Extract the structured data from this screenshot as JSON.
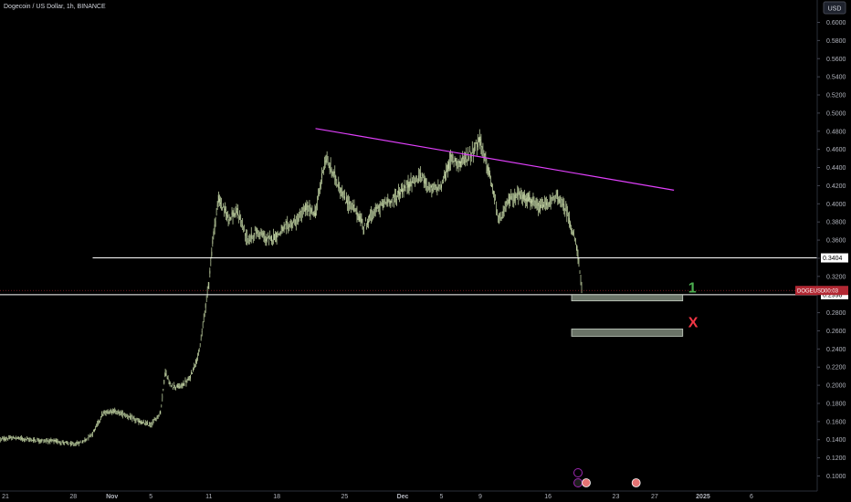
{
  "chart_data": {
    "type": "candlestick",
    "title": "Dogecoin / US Dollar, 1h, BINANCE",
    "currency_label": "USD",
    "y_axis": {
      "ticks": [
        "0.6000",
        "0.5800",
        "0.5600",
        "0.5400",
        "0.5200",
        "0.5000",
        "0.4800",
        "0.4600",
        "0.4400",
        "0.4200",
        "0.4000",
        "0.3800",
        "0.3600",
        "0.3400",
        "0.3200",
        "0.3000",
        "0.2800",
        "0.2600",
        "0.2400",
        "0.2200",
        "0.2000",
        "0.1800",
        "0.1600",
        "0.1400",
        "0.1200",
        "0.1000"
      ],
      "ylim": [
        0.093,
        0.617
      ]
    },
    "x_axis": {
      "ticks": [
        "21",
        "28",
        "Nov",
        "5",
        "11",
        "18",
        "25",
        "Dec",
        "5",
        "9",
        "16",
        "23",
        "27",
        "2025",
        "6"
      ],
      "xlim": [
        "2024-10-21",
        "2025-01-06"
      ]
    },
    "price_series": [
      [
        "2024-10-20T12:00",
        0.1405
      ],
      [
        "2024-10-22",
        0.142
      ],
      [
        "2024-10-24",
        0.1395
      ],
      [
        "2024-10-26",
        0.1385
      ],
      [
        "2024-10-27",
        0.137
      ],
      [
        "2024-10-28",
        0.1345
      ],
      [
        "2024-10-29",
        0.138
      ],
      [
        "2024-10-30",
        0.147
      ],
      [
        "2024-10-31",
        0.168
      ],
      [
        "2024-11-01",
        0.172
      ],
      [
        "2024-11-02",
        0.169
      ],
      [
        "2024-11-03",
        0.164
      ],
      [
        "2024-11-04",
        0.159
      ],
      [
        "2024-11-05",
        0.156
      ],
      [
        "2024-11-06",
        0.17
      ],
      [
        "2024-11-06T12:00",
        0.215
      ],
      [
        "2024-11-07",
        0.2
      ],
      [
        "2024-11-08",
        0.198
      ],
      [
        "2024-11-09",
        0.207
      ],
      [
        "2024-11-10",
        0.236
      ],
      [
        "2024-11-11",
        0.315
      ],
      [
        "2024-11-11T12:00",
        0.37
      ],
      [
        "2024-11-12",
        0.405
      ],
      [
        "2024-11-13",
        0.385
      ],
      [
        "2024-11-14",
        0.39
      ],
      [
        "2024-11-15",
        0.36
      ],
      [
        "2024-11-16",
        0.37
      ],
      [
        "2024-11-17",
        0.36
      ],
      [
        "2024-11-18",
        0.365
      ],
      [
        "2024-11-19",
        0.375
      ],
      [
        "2024-11-20",
        0.38
      ],
      [
        "2024-11-21",
        0.395
      ],
      [
        "2024-11-22",
        0.39
      ],
      [
        "2024-11-23",
        0.45
      ],
      [
        "2024-11-24",
        0.43
      ],
      [
        "2024-11-25",
        0.405
      ],
      [
        "2024-11-26",
        0.395
      ],
      [
        "2024-11-27",
        0.375
      ],
      [
        "2024-11-28",
        0.39
      ],
      [
        "2024-11-29",
        0.4
      ],
      [
        "2024-11-30",
        0.405
      ],
      [
        "2024-12-01",
        0.415
      ],
      [
        "2024-12-02",
        0.425
      ],
      [
        "2024-12-03",
        0.43
      ],
      [
        "2024-12-04",
        0.415
      ],
      [
        "2024-12-05",
        0.42
      ],
      [
        "2024-12-06",
        0.45
      ],
      [
        "2024-12-07",
        0.445
      ],
      [
        "2024-12-08",
        0.455
      ],
      [
        "2024-12-09",
        0.47
      ],
      [
        "2024-12-10",
        0.43
      ],
      [
        "2024-12-11",
        0.38
      ],
      [
        "2024-12-12",
        0.405
      ],
      [
        "2024-12-13",
        0.41
      ],
      [
        "2024-12-14",
        0.405
      ],
      [
        "2024-12-15",
        0.395
      ],
      [
        "2024-12-16",
        0.4
      ],
      [
        "2024-12-17",
        0.408
      ],
      [
        "2024-12-18",
        0.39
      ],
      [
        "2024-12-19",
        0.35
      ],
      [
        "2024-12-19T12:00",
        0.305
      ]
    ],
    "last_price": {
      "label": "DOGEUSD",
      "countdown": "00:03"
    },
    "resistance_line": {
      "from": [
        "2024-11-22",
        0.483
      ],
      "to": [
        "2024-12-29",
        0.415
      ],
      "color": "#e040fb"
    },
    "horizontal_levels": [
      {
        "value": 0.3404,
        "label": "0.3404",
        "from": "2024-10-30"
      },
      {
        "value": 0.2998,
        "label": "0.2998",
        "from": "2024-10-20"
      }
    ],
    "zones": [
      {
        "x": [
          "2024-12-19",
          "2024-12-30"
        ],
        "y": [
          0.293,
          0.3
        ],
        "annotation": "1",
        "annotation_color": "#4caf50"
      },
      {
        "x": [
          "2024-12-19",
          "2024-12-30"
        ],
        "y": [
          0.254,
          0.262
        ],
        "annotation": "X",
        "annotation_color": "#f23645"
      }
    ],
    "colors": {
      "up": "#26a69a",
      "down": "#ef5350",
      "wick": "#b8c99a",
      "background": "#000000",
      "label_bg": "#ffffff",
      "last_price_bg": "#b22833"
    },
    "grid": false
  }
}
